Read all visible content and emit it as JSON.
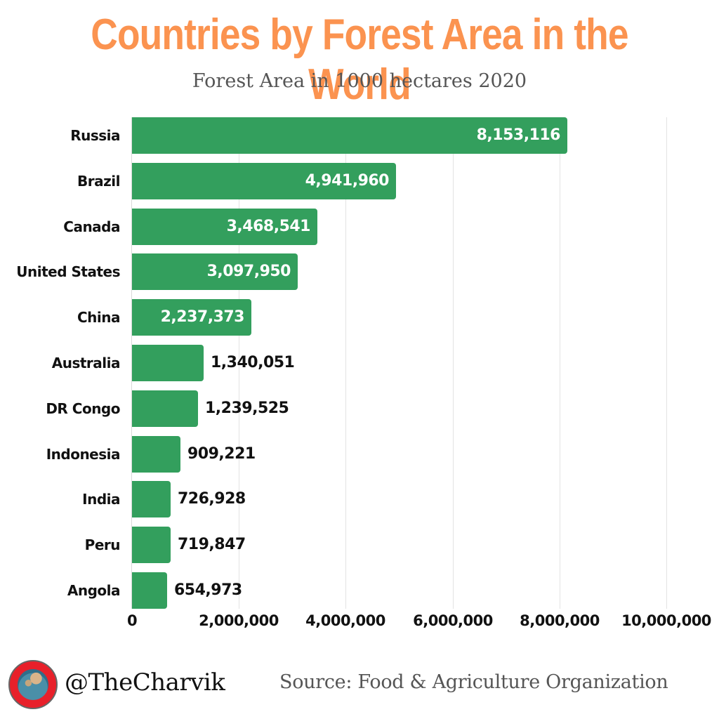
{
  "header": {
    "title": "Countries by Forest Area in the World",
    "subtitle": "Forest Area in 1000 hectares  2020"
  },
  "footer": {
    "handle": "@TheCharvik",
    "source": "Source:  Food & Agriculture Organization",
    "logo_icon": "globe-icon"
  },
  "colors": {
    "title": "#fb9350",
    "bar": "#339f5d",
    "subtitle": "#555555"
  },
  "chart_data": {
    "type": "bar",
    "orientation": "horizontal",
    "title": "Countries by Forest Area in the World",
    "subtitle": "Forest Area in 1000 hectares  2020",
    "xlabel": "",
    "ylabel": "",
    "xlim": [
      0,
      10000000
    ],
    "grid": true,
    "legend": null,
    "categories": [
      "Russia",
      "Brazil",
      "Canada",
      "United States",
      "China",
      "Australia",
      "DR Congo",
      "Indonesia",
      "India",
      "Peru",
      "Angola"
    ],
    "values": [
      8153116,
      4941960,
      3468541,
      3097950,
      2237373,
      1340051,
      1239525,
      909221,
      726928,
      719847,
      654973
    ],
    "value_labels": [
      "8,153,116",
      "4,941,960",
      "3,468,541",
      "3,097,950",
      "2,237,373",
      "1,340,051",
      "1,239,525",
      "909,221",
      "726,928",
      "719,847",
      "654,973"
    ],
    "x_ticks": [
      {
        "value": 0,
        "label": "0"
      },
      {
        "value": 2000000,
        "label": "2,000,000"
      },
      {
        "value": 4000000,
        "label": "4,000,000"
      },
      {
        "value": 6000000,
        "label": "6,000,000"
      },
      {
        "value": 8000000,
        "label": "8,000,000"
      },
      {
        "value": 10000000,
        "label": "10,000,000"
      }
    ],
    "source": "Food & Agriculture Organization"
  }
}
